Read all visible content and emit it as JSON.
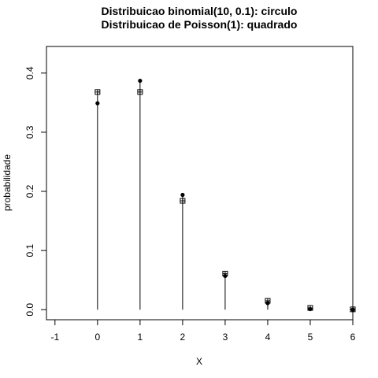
{
  "chart_data": {
    "type": "scatter",
    "title": "Distribuicao binomial(10, 0.1): circulo",
    "subtitle": "Distribuicao de Poisson(1): quadrado",
    "xlabel": "X",
    "ylabel": "probabilidade",
    "xlim": [
      -1.2,
      6
    ],
    "ylim": [
      -0.017,
      0.445
    ],
    "x_ticks": [
      -1,
      0,
      1,
      2,
      3,
      4,
      5,
      6
    ],
    "x_tick_labels": [
      "-1",
      "0",
      "1",
      "2",
      "3",
      "4",
      "5",
      "6"
    ],
    "y_ticks": [
      0,
      0.1,
      0.2,
      0.3,
      0.4
    ],
    "y_tick_labels": [
      "0.0",
      "0.1",
      "0.2",
      "0.3",
      "0.4"
    ],
    "grid": false,
    "x": [
      0,
      1,
      2,
      3,
      4,
      5,
      6
    ],
    "series": [
      {
        "marker": "filled-circle",
        "values": [
          0.349,
          0.387,
          0.194,
          0.057,
          0.011,
          0.001,
          0.0001
        ]
      },
      {
        "marker": "boxed-plus-square",
        "values": [
          0.368,
          0.368,
          0.184,
          0.061,
          0.015,
          0.003,
          0.0005
        ]
      }
    ],
    "colors": {
      "foreground": "#000000",
      "background": "#ffffff"
    }
  }
}
